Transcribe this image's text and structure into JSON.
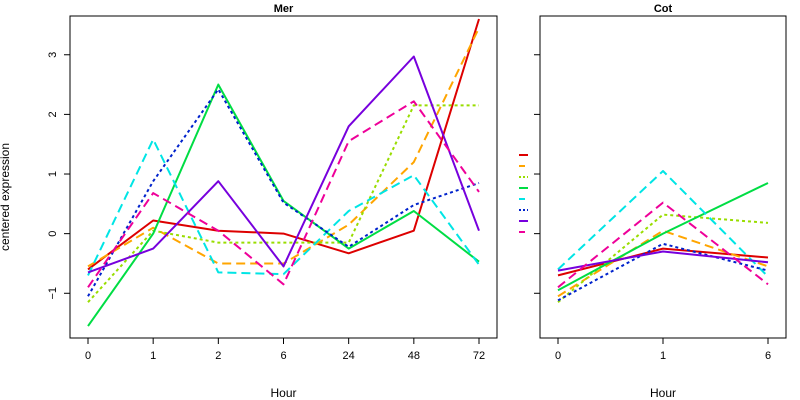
{
  "chart_data": [
    {
      "type": "line",
      "title": "Mer",
      "xlabel": "Hour",
      "ylabel": "centered expression",
      "x": [
        "0",
        "1",
        "2",
        "6",
        "24",
        "48",
        "72"
      ],
      "y_ticks": [
        -1,
        0,
        1,
        2,
        3
      ],
      "ylim": [
        -1.75,
        3.65
      ],
      "grid": false,
      "series": [
        {
          "color": "#dd0000",
          "dash": "solid",
          "values": [
            -0.6,
            0.22,
            0.05,
            0.0,
            -0.33,
            0.05,
            3.6
          ]
        },
        {
          "color": "#ffa500",
          "dash": "dashed",
          "values": [
            -0.55,
            0.1,
            -0.5,
            -0.5,
            0.15,
            1.2,
            3.45
          ]
        },
        {
          "color": "#99dd00",
          "dash": "dotted",
          "values": [
            -1.15,
            0.05,
            -0.15,
            -0.15,
            -0.15,
            2.15,
            2.15
          ]
        },
        {
          "color": "#00dd44",
          "dash": "solid",
          "values": [
            -1.55,
            0.0,
            2.5,
            0.55,
            -0.25,
            0.38,
            -0.47
          ]
        },
        {
          "color": "#00e5e5",
          "dash": "dashed",
          "values": [
            -0.7,
            1.58,
            -0.65,
            -0.68,
            0.38,
            0.98,
            -0.52
          ]
        },
        {
          "color": "#0022cc",
          "dash": "dotted",
          "values": [
            -1.05,
            0.88,
            2.42,
            0.52,
            -0.22,
            0.48,
            0.85
          ]
        },
        {
          "color": "#7700dd",
          "dash": "solid",
          "values": [
            -0.65,
            -0.25,
            0.88,
            -0.55,
            1.8,
            2.97,
            0.05
          ]
        },
        {
          "color": "#ee0099",
          "dash": "dashed",
          "values": [
            -0.9,
            0.68,
            0.05,
            -0.85,
            1.55,
            2.22,
            0.7
          ]
        }
      ]
    },
    {
      "type": "line",
      "title": "Cot",
      "xlabel": "Hour",
      "ylabel": "",
      "x": [
        "0",
        "1",
        "6"
      ],
      "ylim": [
        -1.75,
        3.65
      ],
      "grid": false,
      "series": [
        {
          "color": "#dd0000",
          "dash": "solid",
          "values": [
            -0.7,
            -0.25,
            -0.4
          ]
        },
        {
          "color": "#ffa500",
          "dash": "dashed",
          "values": [
            -1.05,
            0.05,
            -0.55
          ]
        },
        {
          "color": "#99dd00",
          "dash": "dotted",
          "values": [
            -1.15,
            0.32,
            0.18
          ]
        },
        {
          "color": "#00dd44",
          "dash": "solid",
          "values": [
            -0.95,
            0.0,
            0.85
          ]
        },
        {
          "color": "#00e5e5",
          "dash": "dashed",
          "values": [
            -0.6,
            1.05,
            -0.72
          ]
        },
        {
          "color": "#0022cc",
          "dash": "dotted",
          "values": [
            -1.12,
            -0.17,
            -0.62
          ]
        },
        {
          "color": "#7700dd",
          "dash": "solid",
          "values": [
            -0.62,
            -0.3,
            -0.48
          ]
        },
        {
          "color": "#ee0099",
          "dash": "dashed",
          "values": [
            -0.9,
            0.52,
            -0.85
          ]
        }
      ]
    }
  ],
  "legend": {
    "placement": "between-panels",
    "entries": [
      {
        "color": "#dd0000",
        "dash": "solid"
      },
      {
        "color": "#ffa500",
        "dash": "dashed"
      },
      {
        "color": "#99dd00",
        "dash": "dotted"
      },
      {
        "color": "#00dd44",
        "dash": "solid"
      },
      {
        "color": "#00e5e5",
        "dash": "dashed"
      },
      {
        "color": "#0022cc",
        "dash": "dotted"
      },
      {
        "color": "#7700dd",
        "dash": "solid"
      },
      {
        "color": "#ee0099",
        "dash": "dashed"
      }
    ]
  }
}
